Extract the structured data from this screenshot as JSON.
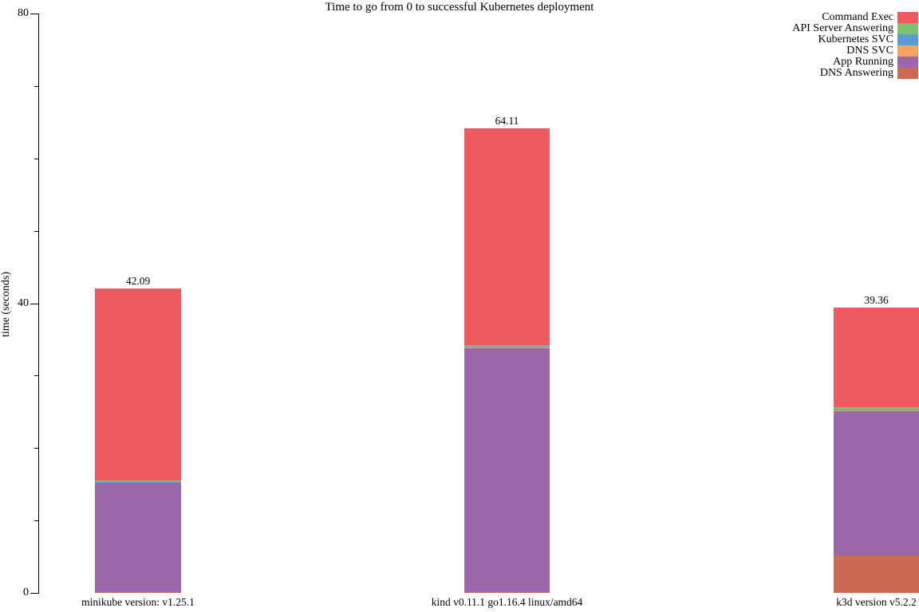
{
  "chart_data": {
    "type": "bar",
    "stacked": true,
    "title": "Time to go from 0 to successful Kubernetes deployment",
    "xlabel": "",
    "ylabel": "time (seconds)",
    "ylim": [
      0,
      80
    ],
    "y_major_ticks": [
      0,
      40,
      80
    ],
    "y_minor_ticks": [
      10,
      20,
      30,
      50,
      60,
      70
    ],
    "grid": false,
    "legend_position": "top-right",
    "categories": [
      "minikube version: v1.25.1",
      "kind v0.11.1 go1.16.4 linux/amd64",
      "k3d version v5.2.2"
    ],
    "bar_totals": [
      "42.09",
      "64.11",
      "39.36"
    ],
    "series": [
      {
        "name": "DNS Answering",
        "color": "#cb6a50",
        "values": [
          0.15,
          0.15,
          5.2
        ]
      },
      {
        "name": "App Running",
        "color": "#9c68ac",
        "values": [
          15.1,
          33.7,
          20.0
        ]
      },
      {
        "name": "DNS SVC",
        "color": "#f9a45c",
        "values": [
          0.05,
          0.05,
          0.05
        ]
      },
      {
        "name": "Kubernetes SVC",
        "color": "#5b9bd5",
        "values": [
          0.05,
          0.05,
          0.1
        ]
      },
      {
        "name": "API Server Answering",
        "color": "#7ac36e",
        "values": [
          0.14,
          0.26,
          0.31
        ]
      },
      {
        "name": "Command Exec",
        "color": "#ee5a5f",
        "values": [
          26.6,
          29.9,
          13.7
        ]
      }
    ],
    "legend": [
      "Command Exec",
      "API Server Answering",
      "Kubernetes SVC",
      "DNS SVC",
      "App Running",
      "DNS Answering"
    ]
  }
}
